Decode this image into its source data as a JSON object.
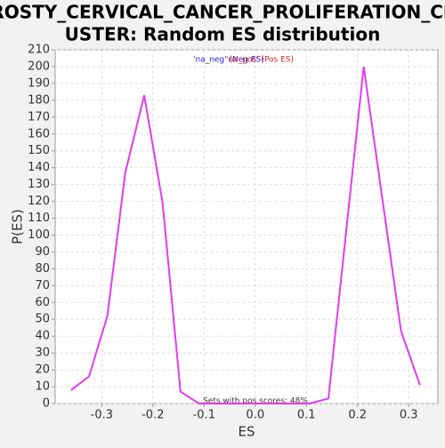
{
  "chart_data": {
    "type": "line",
    "title_lines": [
      "ROSTY_CERVICAL_CANCER_PROLIFERATION_CL",
      "USTER: Random ES distribution"
    ],
    "x_label": "ES",
    "y_label": "P(ES)",
    "x": [
      -0.36,
      -0.325,
      -0.289,
      -0.254,
      -0.217,
      -0.181,
      -0.146,
      -0.11,
      0.0,
      0.106,
      0.143,
      0.212,
      0.285,
      0.322
    ],
    "series": [
      {
        "color": "#e23cf0",
        "values": [
          8,
          16,
          52,
          137,
          183,
          119,
          7,
          0,
          0,
          0,
          3,
          200,
          43,
          11
        ]
      }
    ],
    "legend": [
      {
        "name": "'na_neg' (Neg ES)",
        "color": "#2222cc"
      },
      {
        "name": "'na_pos' (Pos ES)",
        "color": "#dd2222"
      }
    ],
    "annotation": "Sets with pos scores: 48%",
    "xlim": [
      -0.391,
      0.357
    ],
    "xticks": [
      -0.3,
      -0.2,
      -0.1,
      {
        "value": 0,
        "label": "0.0"
      },
      0.1,
      0.2,
      0.3
    ],
    "ylim": [
      0,
      210
    ],
    "yticks": [
      0,
      10,
      20,
      30,
      40,
      50,
      60,
      70,
      80,
      90,
      100,
      110,
      120,
      130,
      140,
      150,
      160,
      170,
      180,
      190,
      200,
      210
    ],
    "grid": true
  }
}
